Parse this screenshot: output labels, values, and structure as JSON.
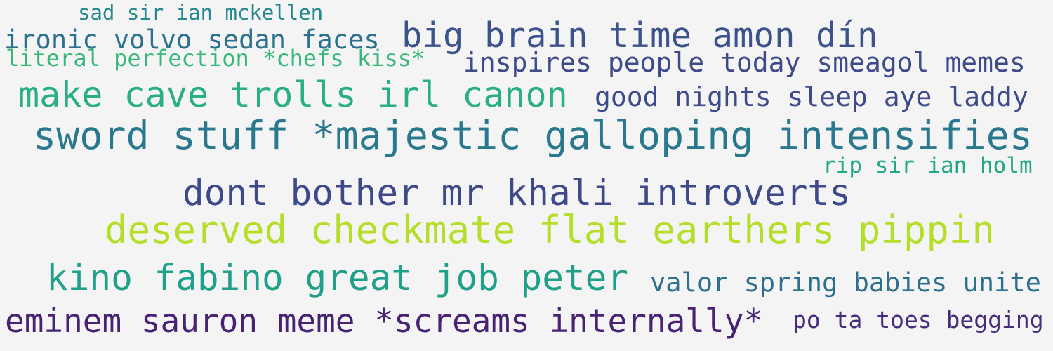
{
  "phrases": [
    {
      "text": "sad sir ian mckellen",
      "color": "#23888e"
    },
    {
      "text": "ironic volvo sedan faces",
      "color": "#2c728e"
    },
    {
      "text": "big brain time amon dín",
      "color": "#3b528b"
    },
    {
      "text": "literal perfection *chefs kiss*",
      "color": "#35b779"
    },
    {
      "text": "inspires people today smeagol memes",
      "color": "#3e4a89"
    },
    {
      "text": "make cave trolls irl canon",
      "color": "#2ab07f"
    },
    {
      "text": "good nights sleep aye laddy",
      "color": "#3e4a89"
    },
    {
      "text": "sword stuff *majestic galloping intensifies",
      "color": "#2a788e"
    },
    {
      "text": "rip sir ian holm",
      "color": "#22a884"
    },
    {
      "text": "dont bother mr khali introverts",
      "color": "#3e4989"
    },
    {
      "text": "deserved checkmate flat earthers pippin",
      "color": "#b5de2b"
    },
    {
      "text": "kino fabino great job peter",
      "color": "#1fa088"
    },
    {
      "text": "valor spring babies unite",
      "color": "#2d708e"
    },
    {
      "text": "eminem sauron meme *screams internally*",
      "color": "#482374"
    },
    {
      "text": "po ta toes begging",
      "color": "#472c7a"
    }
  ]
}
